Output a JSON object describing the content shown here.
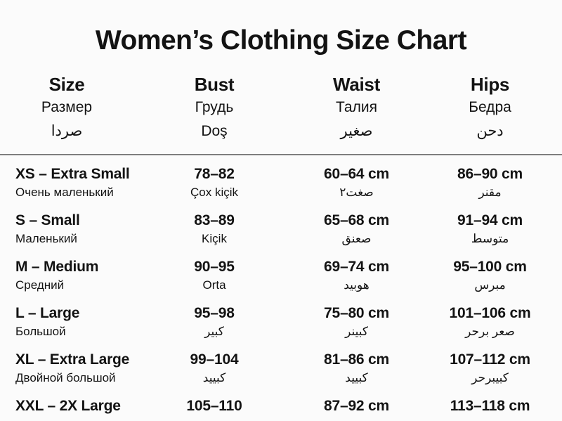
{
  "title": "Women’s Clothing Size Chart",
  "header": {
    "columns": [
      {
        "en": "Size",
        "ru": "Размер",
        "third": "صردا"
      },
      {
        "en": "Bust",
        "ru": "Грудь",
        "third": "Doş"
      },
      {
        "en": "Waist",
        "ru": "Талия",
        "third": "صغير"
      },
      {
        "en": "Hips",
        "ru": "Бедра",
        "third": "دحن"
      }
    ]
  },
  "rows": [
    {
      "size": "XS – Extra Small",
      "size_sub": "Очень маленький",
      "bust": "78–82",
      "bust_sub": "Çox kiçik",
      "waist": "60–64 cm",
      "waist_sub": "صغت٢",
      "hips": "86–90 cm",
      "hips_sub": "مقنر"
    },
    {
      "size": "S – Small",
      "size_sub": "Маленький",
      "bust": "83–89",
      "bust_sub": "Kiçik",
      "waist": "65–68 cm",
      "waist_sub": "صعنق",
      "hips": "91–94 cm",
      "hips_sub": "متوسط"
    },
    {
      "size": "M – Medium",
      "size_sub": "Средний",
      "bust": "90–95",
      "bust_sub": "Orta",
      "waist": "69–74 cm",
      "waist_sub": "هوبيد",
      "hips": "95–100 cm",
      "hips_sub": "مبرس"
    },
    {
      "size": "L – Large",
      "size_sub": "Большой",
      "bust": "95–98",
      "bust_sub": "كبير",
      "waist": "75–80 cm",
      "waist_sub": "كبينر",
      "hips": "101–106 cm",
      "hips_sub": "صعر برحر"
    },
    {
      "size": "XL – Extra Large",
      "size_sub": "Двойной большой",
      "bust": "99–104",
      "bust_sub": "كبييد",
      "waist": "81–86 cm",
      "waist_sub": "كبييد",
      "hips": "107–112 cm",
      "hips_sub": "كبيبرحر"
    },
    {
      "size": "XXL – 2X Large",
      "size_sub": "",
      "bust": "105–110",
      "bust_sub": "",
      "waist": "87–92 cm",
      "waist_sub": "",
      "hips": "113–118 cm",
      "hips_sub": ""
    }
  ]
}
